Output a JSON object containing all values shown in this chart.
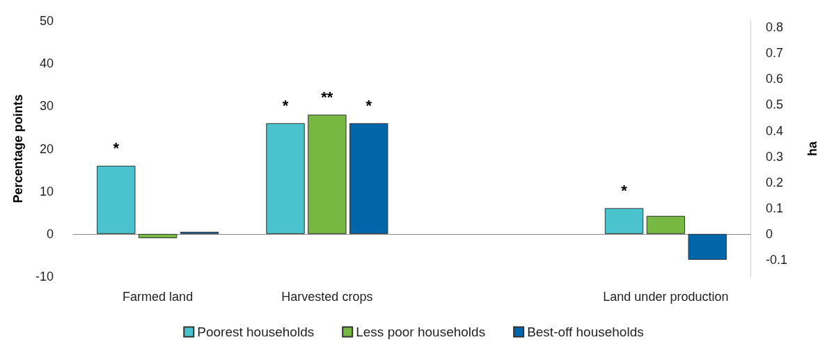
{
  "chart_data": {
    "type": "bar",
    "ylabel": "Percentage points",
    "y2label": "ha",
    "categories": [
      "Farmed land",
      "Harvested crops",
      null,
      "Land under production"
    ],
    "series": [
      {
        "name": "Poorest households",
        "color": "#4bc3cf",
        "axis": "y",
        "values": [
          16,
          26,
          null,
          null
        ],
        "value_labels": [
          "*",
          "*",
          null,
          null
        ]
      },
      {
        "name": "Less poor households",
        "color": "#77b843",
        "axis": "y",
        "values": [
          -1,
          28,
          null,
          null
        ],
        "value_labels": [
          null,
          "**",
          null,
          null
        ]
      },
      {
        "name": "Best-off households",
        "color": "#0066aa",
        "axis": "y",
        "values": [
          0.5,
          26,
          null,
          null
        ],
        "value_labels": [
          null,
          "*",
          null,
          null
        ]
      },
      {
        "color": "#4bc3cf",
        "axis": "y2",
        "values": [
          null,
          null,
          null,
          0.1
        ],
        "value_labels": [
          null,
          null,
          null,
          "*"
        ]
      },
      {
        "color": "#77b843",
        "axis": "y2",
        "values": [
          null,
          null,
          null,
          0.07
        ],
        "value_labels": [
          null,
          null,
          null,
          null
        ]
      },
      {
        "color": "#0066aa",
        "axis": "y2",
        "values": [
          null,
          null,
          null,
          -0.1
        ],
        "value_labels": [
          null,
          null,
          null,
          null
        ]
      }
    ],
    "ylim": [
      -10,
      50
    ],
    "yticks": [
      -10,
      0,
      10,
      20,
      30,
      40,
      50
    ],
    "y2lim": [
      -0.165,
      0.825
    ],
    "y2ticks": [
      -0.1,
      0,
      0.1,
      0.2,
      0.3,
      0.4,
      0.5,
      0.6,
      0.7,
      0.8
    ],
    "legend": "bottom"
  }
}
